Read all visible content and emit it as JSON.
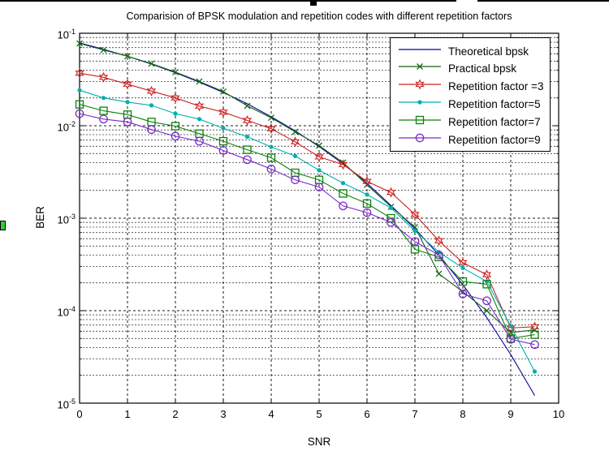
{
  "chart_data": {
    "type": "line",
    "title": "Comparision of BPSK modulation and repetition codes with different repetition factors",
    "xlabel": "SNR",
    "ylabel": "BER",
    "xlim": [
      0,
      10
    ],
    "ylim": [
      1e-05,
      0.1
    ],
    "yscale": "log",
    "grid": "dashed black major grid, log minor grid on y",
    "legend_position": "upper right",
    "x_ticks": [
      "0",
      "1",
      "2",
      "3",
      "4",
      "5",
      "6",
      "7",
      "8",
      "9",
      "10"
    ],
    "y_tick_base": "10",
    "y_tick_exponents": [
      "-1",
      "-2",
      "-3",
      "-4",
      "-5"
    ],
    "series": [
      {
        "name": "Theoretical bpsk",
        "color": "#00009C",
        "marker": "none",
        "x": [
          0,
          0.5,
          1,
          1.5,
          2,
          2.5,
          3,
          3.5,
          4,
          4.5,
          5,
          5.5,
          6,
          6.5,
          7,
          7.5,
          8,
          8.5,
          9,
          9.5
        ],
        "y": [
          0.0786,
          0.067,
          0.0563,
          0.0464,
          0.0375,
          0.0296,
          0.0229,
          0.0173,
          0.0125,
          0.0088,
          0.00595,
          0.00388,
          0.00239,
          0.00137,
          0.00077,
          0.0004,
          0.000191,
          8.4e-05,
          3.36e-05,
          1.21e-05
        ]
      },
      {
        "name": "Practical bpsk",
        "color": "#156515",
        "marker": "x",
        "x": [
          0,
          0.5,
          1,
          1.5,
          2,
          2.5,
          3,
          3.5,
          4,
          4.5,
          5,
          5.5,
          6,
          6.5,
          7,
          7.5,
          8,
          8.5,
          9,
          9.5
        ],
        "y": [
          0.0775,
          0.066,
          0.0565,
          0.047,
          0.038,
          0.0301,
          0.0234,
          0.0164,
          0.0122,
          0.0086,
          0.0061,
          0.004,
          0.0023,
          0.00133,
          0.0008,
          0.00025,
          0.00016,
          0.0001,
          5.8e-05,
          6.2e-05
        ]
      },
      {
        "name": "Repetition factor =3",
        "color": "#CB2222",
        "marker": "hexagram",
        "x": [
          0,
          0.5,
          1,
          1.5,
          2,
          2.5,
          3,
          3.5,
          4,
          4.5,
          5,
          5.5,
          6,
          6.5,
          7,
          7.5,
          8,
          8.5,
          9,
          9.5
        ],
        "y": [
          0.037,
          0.0334,
          0.0281,
          0.0237,
          0.02,
          0.0163,
          0.014,
          0.0114,
          0.0093,
          0.0067,
          0.0046,
          0.0038,
          0.0025,
          0.0019,
          0.0011,
          0.00057,
          0.00033,
          0.000245,
          6.5e-05,
          6.7e-05
        ]
      },
      {
        "name": "Repetition factor=5",
        "color": "#00AEAE",
        "marker": "dot",
        "x": [
          0,
          0.5,
          1,
          1.5,
          2,
          2.5,
          3,
          3.5,
          4,
          4.5,
          5,
          5.5,
          6,
          6.5,
          7,
          7.5,
          8,
          8.5,
          9,
          9.5
        ],
        "y": [
          0.0242,
          0.02,
          0.018,
          0.0166,
          0.0135,
          0.0118,
          0.0094,
          0.0076,
          0.0059,
          0.0047,
          0.0033,
          0.0024,
          0.0018,
          0.00129,
          0.00073,
          0.00043,
          0.00029,
          0.000207,
          6.8e-05,
          2.2e-05
        ]
      },
      {
        "name": "Repetition factor=7",
        "color": "#0B830B",
        "marker": "square",
        "x": [
          0,
          0.5,
          1,
          1.5,
          2,
          2.5,
          3,
          3.5,
          4,
          4.5,
          5,
          5.5,
          6,
          6.5,
          7,
          7.5,
          8,
          8.5,
          9,
          9.5
        ],
        "y": [
          0.017,
          0.0145,
          0.0132,
          0.011,
          0.0099,
          0.0082,
          0.0068,
          0.0055,
          0.0045,
          0.0031,
          0.0026,
          0.00185,
          0.00144,
          0.001,
          0.00046,
          0.00038,
          0.000207,
          0.000193,
          5e-05,
          5.5e-05
        ]
      },
      {
        "name": "Repetition factor=9",
        "color": "#7A2BC8",
        "marker": "circle",
        "x": [
          0,
          0.5,
          1,
          1.5,
          2,
          2.5,
          3,
          3.5,
          4,
          4.5,
          5,
          5.5,
          6,
          6.5,
          7,
          7.5,
          8,
          8.5,
          9,
          9.5
        ],
        "y": [
          0.0135,
          0.0118,
          0.011,
          0.0091,
          0.0077,
          0.0068,
          0.0054,
          0.0043,
          0.0034,
          0.0026,
          0.00217,
          0.00136,
          0.00115,
          0.0009,
          0.00056,
          0.0004,
          0.000152,
          0.000128,
          4.9e-05,
          4.3e-05
        ]
      }
    ]
  },
  "artifacts": {
    "top_line_color": "#000000",
    "green_tab_color": "#33CC33"
  }
}
